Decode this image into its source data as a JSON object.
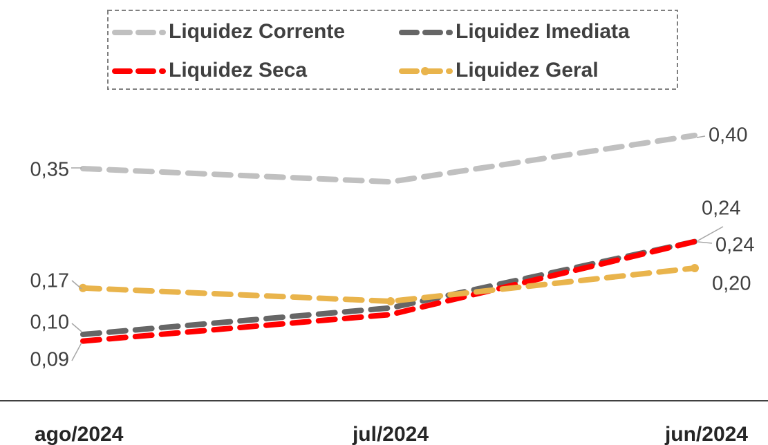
{
  "chart_data": {
    "type": "line",
    "categories": [
      "ago/2024",
      "jul/2024",
      "jun/2024"
    ],
    "series": [
      {
        "name": "Liquidez Corrente",
        "color": "#c0c0c0",
        "values": [
          0.35,
          0.33,
          0.4
        ],
        "value_labels": [
          "0,35",
          null,
          "0,40"
        ]
      },
      {
        "name": "Liquidez Imediata",
        "color": "#666666",
        "values": [
          0.1,
          0.14,
          0.24
        ],
        "value_labels": [
          "0,10",
          null,
          "0,24"
        ]
      },
      {
        "name": "Liquidez Seca",
        "color": "#ff0000",
        "values": [
          0.09,
          0.13,
          0.24
        ],
        "value_labels": [
          "0,09",
          null,
          "0,24"
        ]
      },
      {
        "name": "Liquidez Geral",
        "color": "#e9b44c",
        "values": [
          0.17,
          0.15,
          0.2
        ],
        "value_labels": [
          "0,17",
          null,
          "0,20"
        ]
      }
    ],
    "ylim": [
      0,
      0.45
    ],
    "legend": "top"
  }
}
